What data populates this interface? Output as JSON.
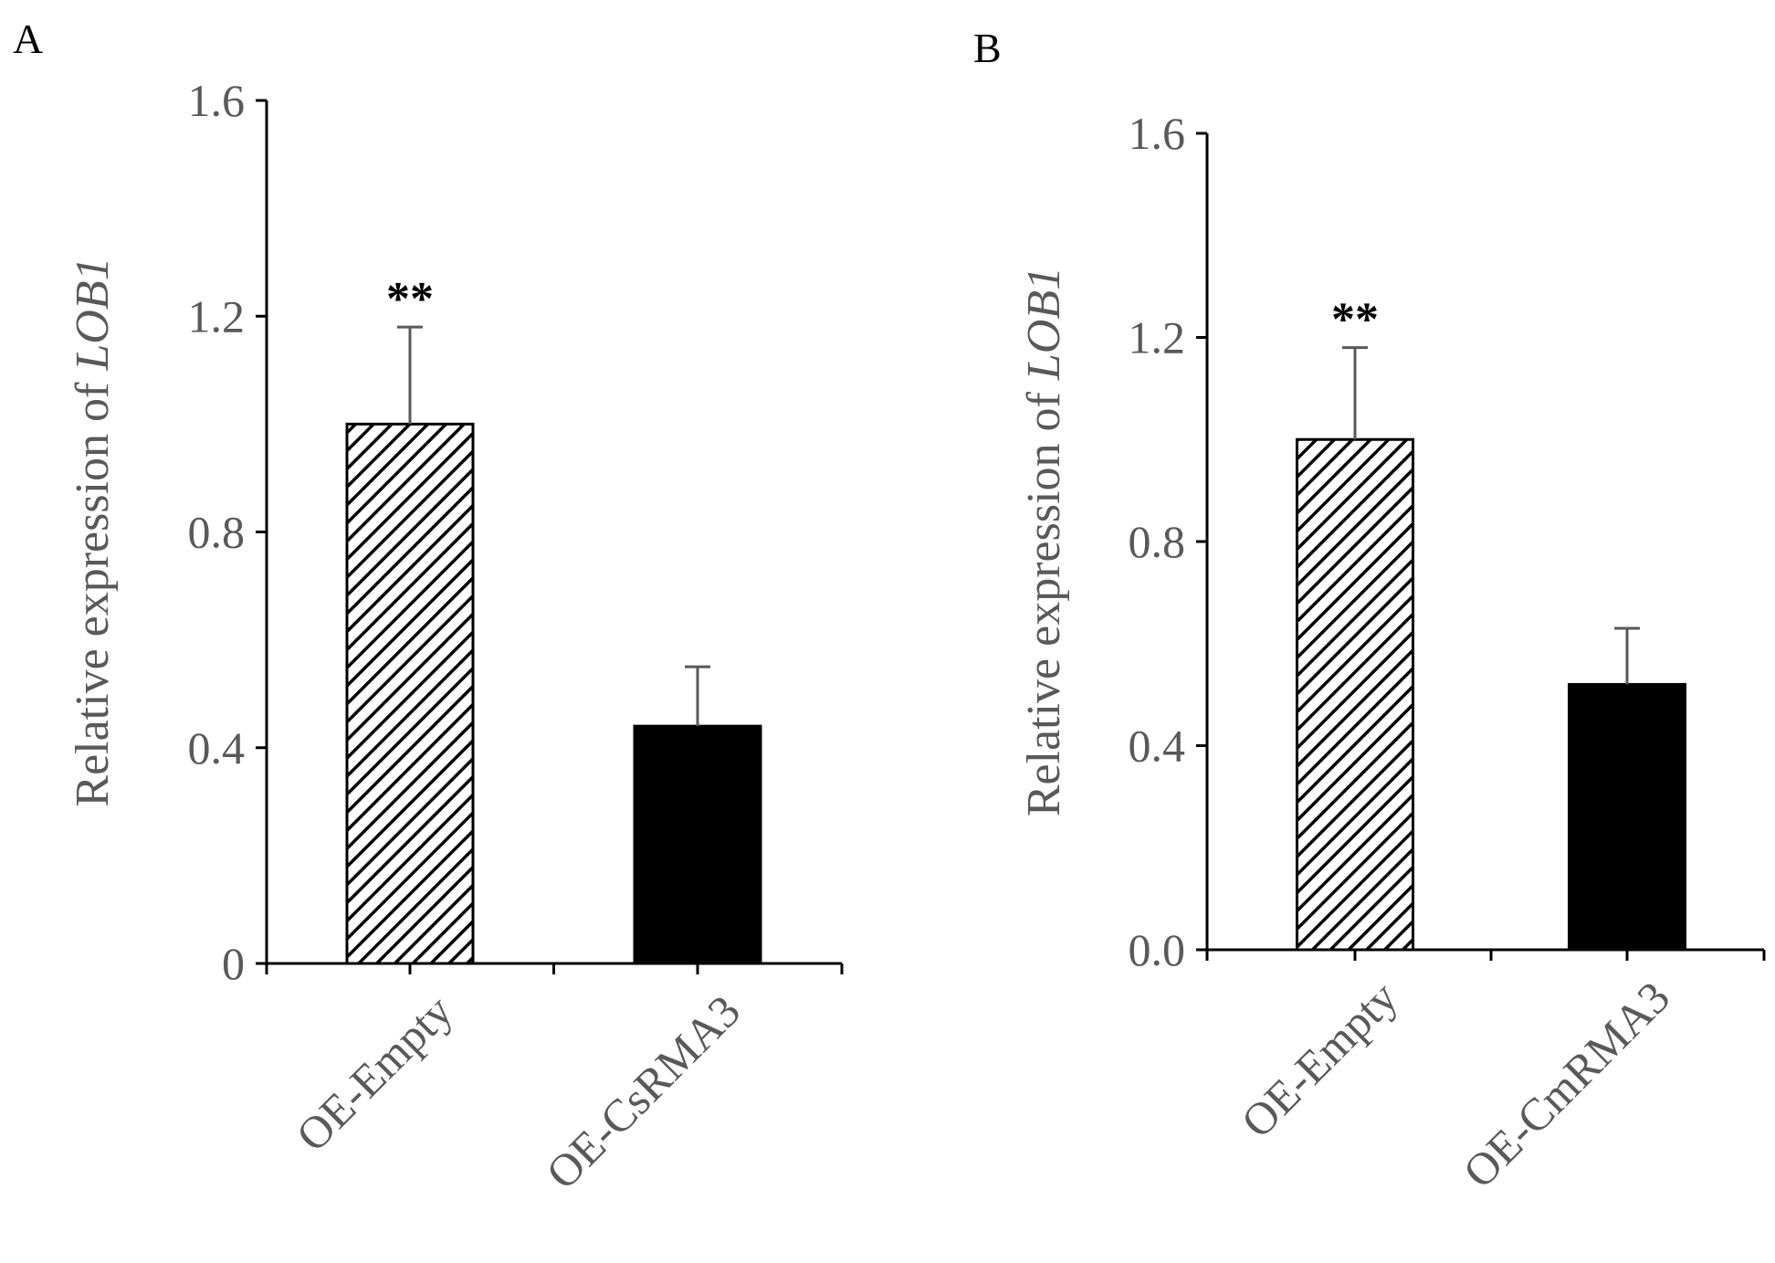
{
  "chart_data": [
    {
      "type": "bar",
      "panel": "A",
      "categories": [
        "OE-Empty",
        "OE-CsRMA3"
      ],
      "values": [
        1.0,
        0.44
      ],
      "errors": [
        0.18,
        0.11
      ],
      "patterns": [
        "hatched",
        "solid"
      ],
      "significance": [
        "**",
        ""
      ],
      "ylabel_prefix": "Relative expression of ",
      "ylabel_gene": "LOB1",
      "xlabel": "",
      "ylim": [
        0,
        1.6
      ],
      "yticks": [
        0,
        0.4,
        0.8,
        1.2,
        1.6
      ],
      "ytick_labels": [
        "0",
        "0.4",
        "0.8",
        "1.2",
        "1.6"
      ],
      "grid": false
    },
    {
      "type": "bar",
      "panel": "B",
      "categories": [
        "OE-Empty",
        "OE-CmRMA3"
      ],
      "values": [
        1.0,
        0.52
      ],
      "errors": [
        0.18,
        0.11
      ],
      "patterns": [
        "hatched",
        "solid"
      ],
      "significance": [
        "**",
        ""
      ],
      "ylabel_prefix": "Relative expression of ",
      "ylabel_gene": "LOB1",
      "xlabel": "",
      "ylim": [
        0,
        1.6
      ],
      "yticks": [
        0,
        0.4,
        0.8,
        1.2,
        1.6
      ],
      "ytick_labels": [
        "0.0",
        "0.4",
        "0.8",
        "1.2",
        "1.6"
      ],
      "grid": false
    }
  ],
  "colors": {
    "bar": "#000000",
    "hatch": "#000000",
    "axis_text": "#595959",
    "error_bar": "#595959",
    "background": "#ffffff"
  }
}
